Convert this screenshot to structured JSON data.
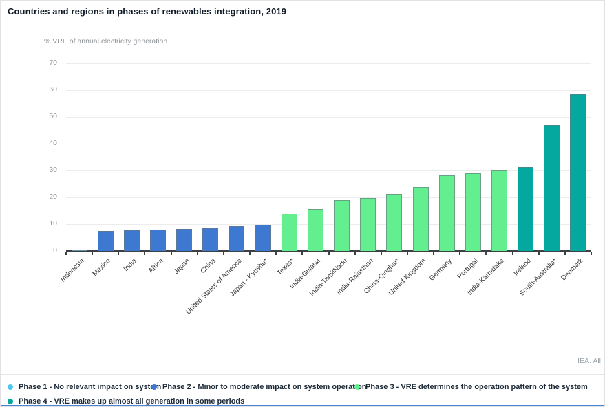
{
  "page": {
    "title": "Countries and regions in phases of renewables integration, 2019",
    "source_note": "IEA. All"
  },
  "chart_data": {
    "type": "bar",
    "title": "Countries and regions in phases of renewables integration, 2019",
    "ylabel": "% VRE of annual electricity generation",
    "xlabel": "",
    "ylim": [
      0,
      70
    ],
    "yticks": [
      0,
      10,
      20,
      30,
      40,
      50,
      60,
      70
    ],
    "grid": true,
    "legend_position": "bottom",
    "categories": [
      "Indonesia",
      "Mexico",
      "India",
      "Africa",
      "Japan",
      "China",
      "United States of America",
      "Japan - Kyushu*",
      "Texas*",
      "India-Gujarat",
      "India-TamilNadu",
      "India-Rajasthan",
      "China-Qinghai*",
      "United Kingdom",
      "Germany",
      "Portugal",
      "India-Karnataka",
      "Ireland",
      "South-Australia*",
      "Denmark"
    ],
    "values": [
      0.3,
      7.4,
      7.6,
      7.9,
      8.2,
      8.5,
      9.3,
      9.7,
      13.8,
      15.7,
      18.9,
      19.8,
      21.3,
      23.8,
      28.2,
      28.9,
      30.0,
      31.4,
      46.8,
      58.4
    ],
    "phases": [
      1,
      2,
      2,
      2,
      2,
      2,
      2,
      2,
      3,
      3,
      3,
      3,
      3,
      3,
      3,
      3,
      3,
      4,
      4,
      4
    ]
  },
  "legend": {
    "items": [
      {
        "phase": 1,
        "label": "Phase 1 - No relevant impact on system",
        "color": "#4fc8ee",
        "row": 1
      },
      {
        "phase": 2,
        "label": "Phase 2 - Minor to moderate impact on system operation",
        "color": "#3d78d1",
        "row": 1
      },
      {
        "phase": 3,
        "label": "Phase 3 - VRE determines the operation pattern of the system",
        "color": "#63ee90",
        "row": 1
      },
      {
        "phase": 4,
        "label": "Phase 4 - VRE makes up almost all generation in some periods",
        "color": "#05a89f",
        "row": 2
      }
    ]
  },
  "colors": {
    "phase1": "#4fc8ee",
    "phase2": "#3d78d1",
    "phase3": "#63ee90",
    "phase4": "#05a89f",
    "axis": "#3c4043",
    "gridline": "#ececec",
    "bottom_border": "#4a84d6"
  }
}
